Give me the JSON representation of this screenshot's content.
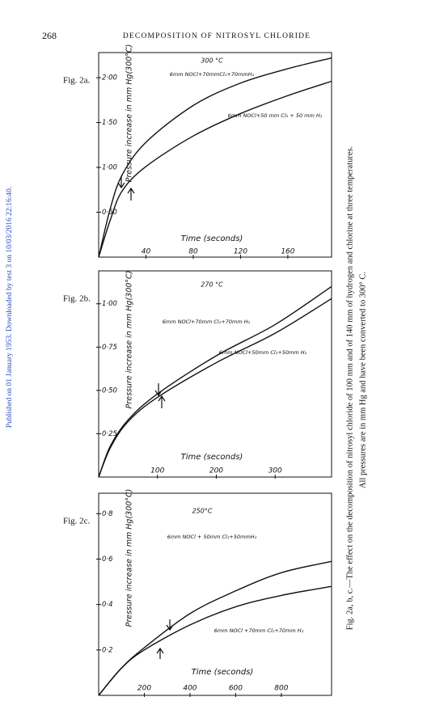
{
  "page_number": "268",
  "running_title": "DECOMPOSITION OF NITROSYL CHLORIDE",
  "side_note": "Published on 01 January 1953. Downloaded by test 3 on 10/03/2016 22:16:40.",
  "caption": [
    "Fig. 2a, b, c.—The effect on the decomposition of nitrosyl chloride of 100 mm and of 140 mm of hydrogen and chlorine at three temperatures.",
    "All pressures are in mm Hg  and have been converted to 300° C."
  ],
  "chart_data": [
    {
      "type": "line",
      "figure_label": "Fig. 2a.",
      "title": "300 °C",
      "x_label": "Time (seconds)",
      "y_label": "Pressure increase in mm Hg(300°C)",
      "x": [
        0,
        10,
        20,
        40,
        80,
        120,
        160,
        197
      ],
      "series": [
        {
          "name": "6mm NOCl+70mmCl₂+70mmH₂",
          "color": "#111111",
          "values": [
            0,
            0.55,
            0.92,
            1.28,
            1.69,
            1.94,
            2.1,
            2.22
          ]
        },
        {
          "name": "6mm NOCl+50 mm Cl₂ + 50 mm H₂",
          "color": "#111111",
          "values": [
            0,
            0.42,
            0.74,
            1.01,
            1.35,
            1.6,
            1.8,
            1.96
          ]
        }
      ],
      "xlim": [
        0,
        197
      ],
      "ylim": [
        0,
        2.28
      ],
      "xticks": [
        40,
        80,
        120,
        160
      ],
      "yticks": [
        {
          "value": 0.5,
          "label": "0·50"
        },
        {
          "value": 1,
          "label": "1·00"
        },
        {
          "value": 1.5,
          "label": "1·50"
        },
        {
          "value": 2,
          "label": "2·00"
        }
      ]
    },
    {
      "type": "line",
      "figure_label": "Fig. 2b.",
      "title": "270 °C",
      "x_label": "Time (seconds)",
      "y_label": "Pressure increase in mm Hg(300°C)",
      "x": [
        0,
        20,
        50,
        100,
        200,
        300,
        396
      ],
      "series": [
        {
          "name": "6mm NOCl+70mm Cl₂+70mm H₂",
          "color": "#111111",
          "values": [
            0,
            0.18,
            0.33,
            0.48,
            0.7,
            0.88,
            1.1
          ]
        },
        {
          "name": "6mm NOCl+50mm Cl₂+50mm H₂",
          "color": "#111111",
          "values": [
            0,
            0.17,
            0.32,
            0.46,
            0.66,
            0.83,
            1.03
          ]
        }
      ],
      "xlim": [
        0,
        396
      ],
      "ylim": [
        0,
        1.19
      ],
      "xticks": [
        100,
        200,
        300
      ],
      "yticks": [
        {
          "value": 0.25,
          "label": "0·25"
        },
        {
          "value": 0.5,
          "label": "0·50"
        },
        {
          "value": 0.75,
          "label": "0·75"
        },
        {
          "value": 1,
          "label": "1·00"
        }
      ]
    },
    {
      "type": "line",
      "figure_label": "Fig. 2c.",
      "title": "250°C",
      "x_label": "Time (seconds)",
      "y_label": "Pressure increase in mm Hg(300°C)",
      "x": [
        0,
        100,
        200,
        400,
        600,
        800,
        1020
      ],
      "series": [
        {
          "name": "6mm NOCl + 50mm Cl₂+50mmH₂",
          "color": "#111111",
          "values": [
            0,
            0.12,
            0.21,
            0.36,
            0.46,
            0.54,
            0.59
          ]
        },
        {
          "name": "6mm NOCl +70mm Cl₂+70mm H₂",
          "color": "#111111",
          "values": [
            0,
            0.12,
            0.2,
            0.31,
            0.39,
            0.44,
            0.48
          ]
        }
      ],
      "xlim": [
        0,
        1020
      ],
      "ylim": [
        0,
        0.89
      ],
      "xticks": [
        200,
        400,
        600,
        800
      ],
      "yticks": [
        {
          "value": 0.2,
          "label": "0·2"
        },
        {
          "value": 0.4,
          "label": "0·4"
        },
        {
          "value": 0.6,
          "label": "0·6"
        },
        {
          "value": 0.8,
          "label": "0·8"
        }
      ]
    }
  ]
}
